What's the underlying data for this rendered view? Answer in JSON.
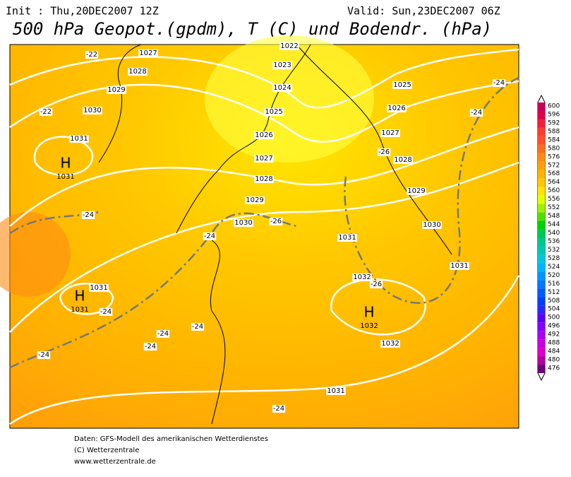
{
  "header": {
    "init": "Init : Thu,20DEC2007 12Z",
    "valid": "Valid: Sun,23DEC2007 06Z",
    "title": "500 hPa Geopot.(gpdm), T (C) und Bodendr. (hPa)"
  },
  "map": {
    "pressure_labels": [
      1027,
      1028,
      1029,
      1030,
      1031,
      1022,
      1023,
      1024,
      1025,
      1026,
      1027,
      1028,
      1029,
      1030,
      1031,
      1032,
      1032,
      1031,
      1031,
      1025,
      1026,
      1027,
      1028,
      1029,
      1030,
      1031
    ],
    "highs": [
      {
        "label": "H",
        "value": 1031
      },
      {
        "label": "H",
        "value": 1031
      },
      {
        "label": "H",
        "value": 1032
      }
    ],
    "temperature_labels": [
      -22,
      -22,
      -26,
      -24,
      -24,
      -24,
      -24,
      -26,
      -26,
      -24,
      -24,
      -24,
      -24,
      -24,
      -24
    ]
  },
  "legend": {
    "levels": [
      600,
      596,
      592,
      588,
      584,
      580,
      576,
      572,
      568,
      564,
      560,
      556,
      552,
      548,
      544,
      540,
      536,
      532,
      528,
      524,
      520,
      516,
      512,
      508,
      504,
      500,
      496,
      492,
      488,
      484,
      480,
      476
    ],
    "colors": [
      "#c8005a",
      "#e0004a",
      "#f01e3c",
      "#ff3c32",
      "#ff5028",
      "#ff6e1e",
      "#ff8c14",
      "#ffa00a",
      "#ffb400",
      "#ffc800",
      "#ffe600",
      "#e6ff00",
      "#a0f000",
      "#50e000",
      "#00d200",
      "#00c850",
      "#00c88c",
      "#00c8b4",
      "#00c8dc",
      "#00b4ff",
      "#0096ff",
      "#0078ff",
      "#005aff",
      "#003cff",
      "#2828ff",
      "#5a00ff",
      "#8200ff",
      "#aa00f0",
      "#c800dc",
      "#dc00c8",
      "#b400a0",
      "#6e0078"
    ]
  },
  "footer": {
    "lines": [
      "Daten: GFS-Modell des amerikanischen Wetterdienstes",
      "(C) Wetterzentrale",
      "www.wetterzentrale.de"
    ]
  }
}
